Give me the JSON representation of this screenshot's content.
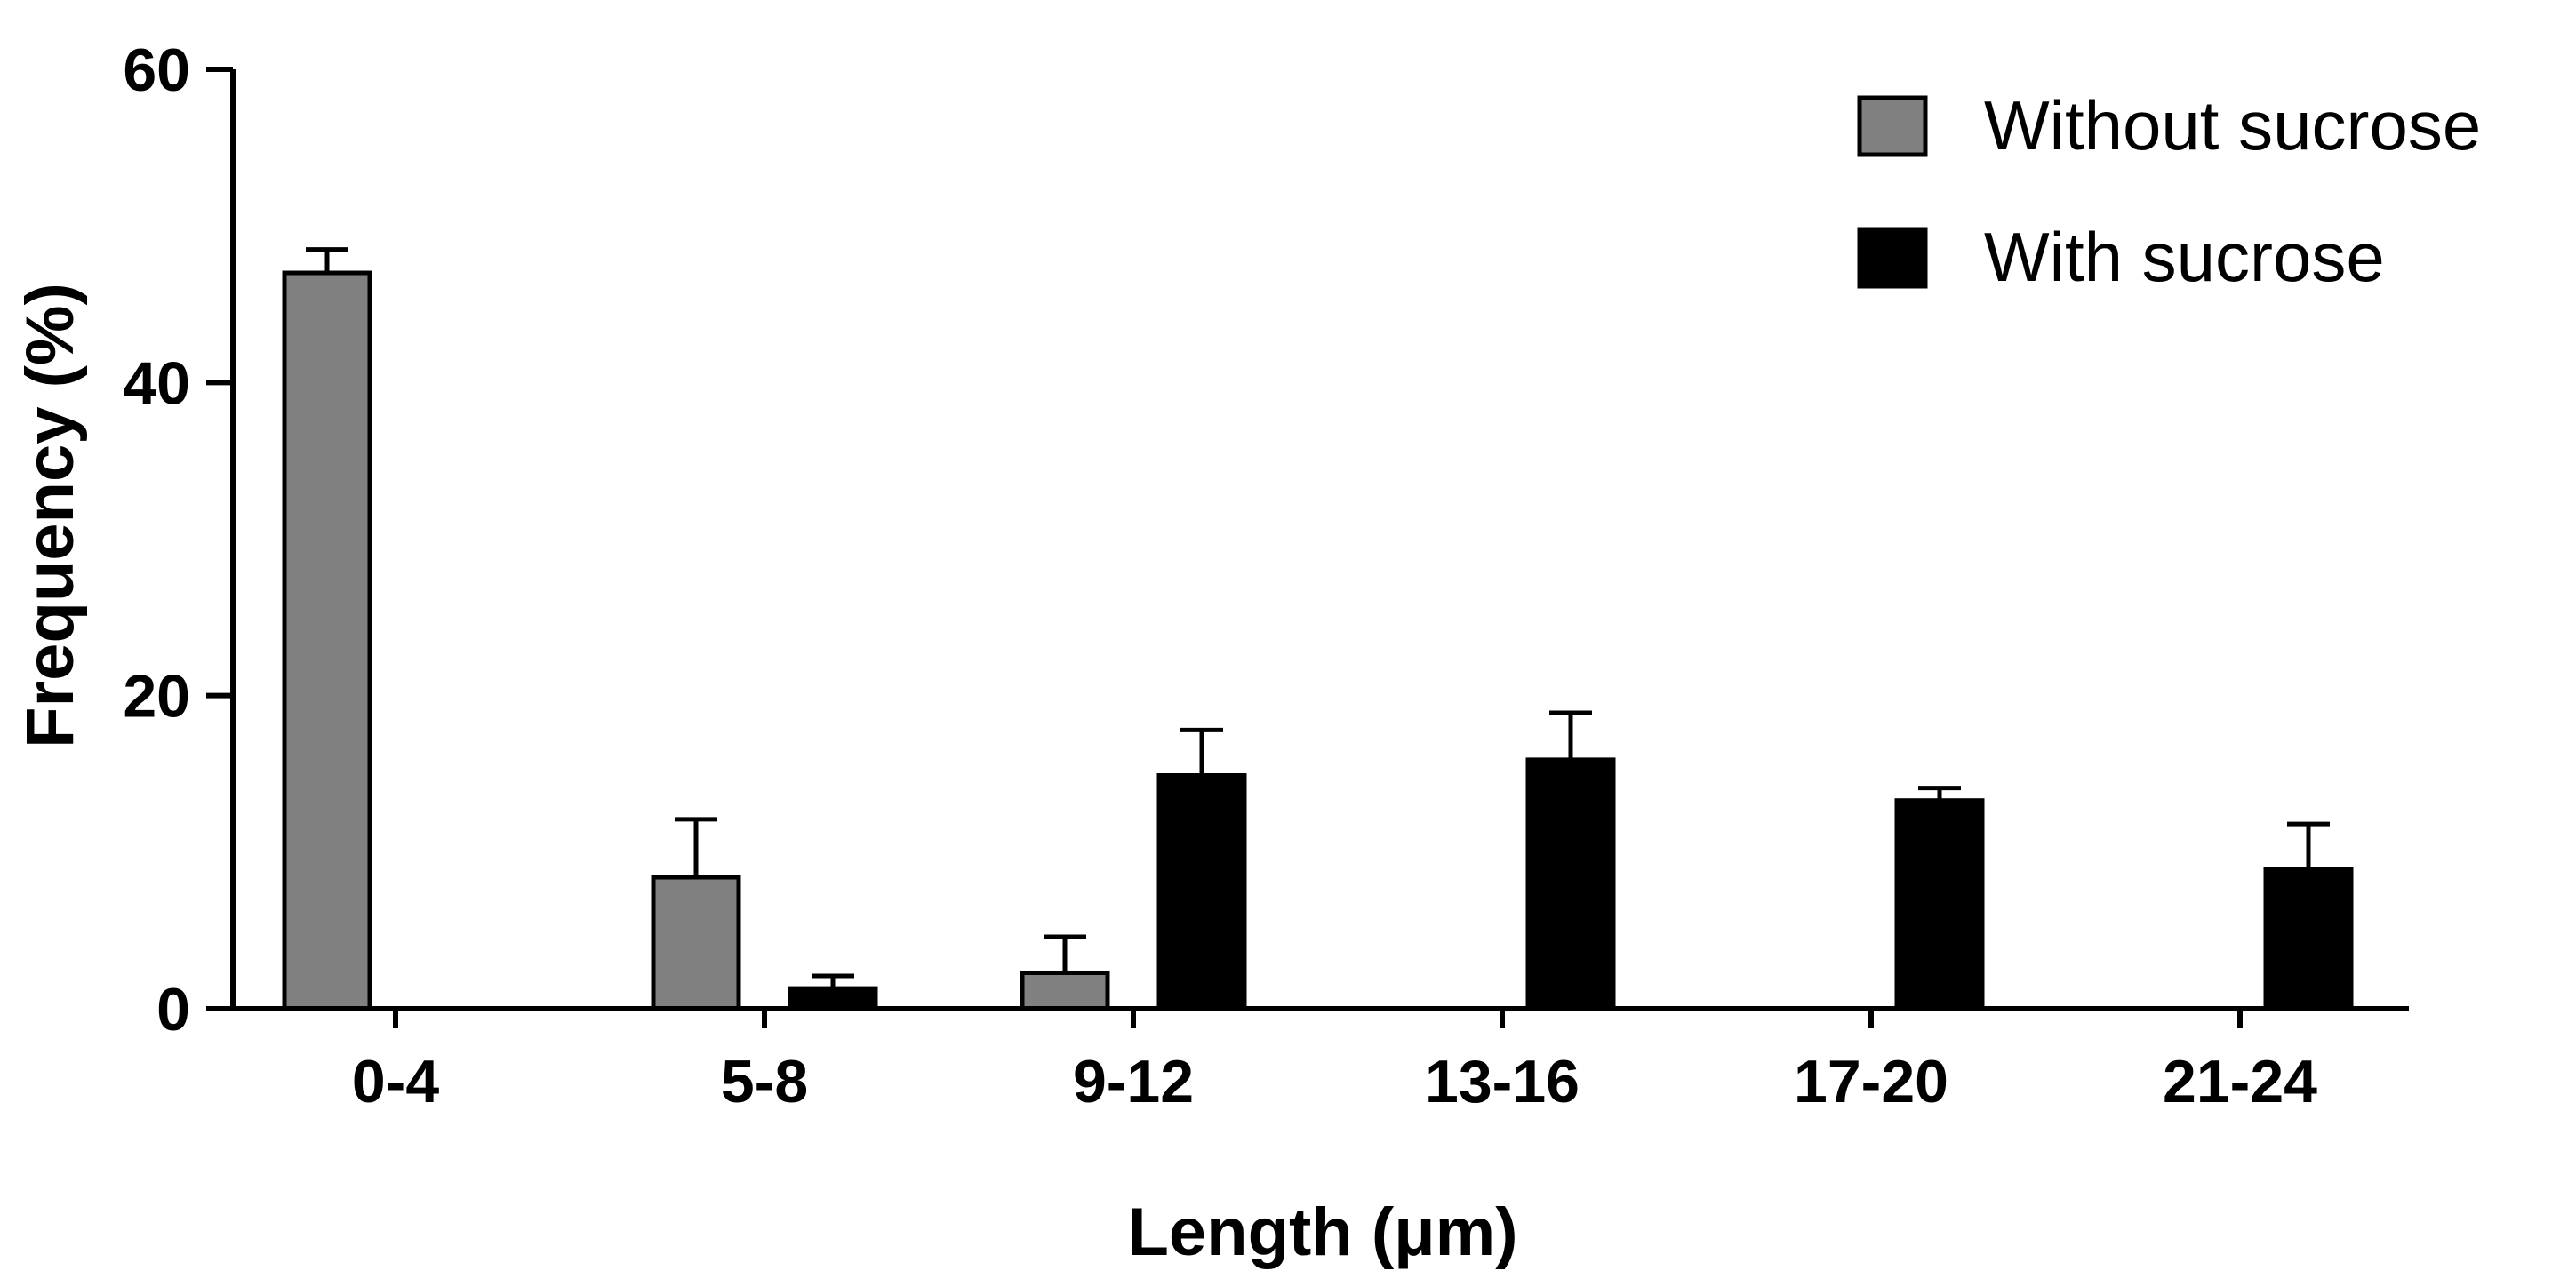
{
  "chart_data": {
    "type": "bar",
    "xlabel": "Length (μm)",
    "ylabel": "Frequency (%)",
    "ylim": [
      0,
      60
    ],
    "yticks": [
      0,
      20,
      40,
      60
    ],
    "categories": [
      "0-4",
      "5-8",
      "9-12",
      "13-16",
      "17-20",
      "21-24"
    ],
    "error_bars": "upper, one-sided",
    "legend_position": "top-right",
    "grid": false,
    "series": [
      {
        "name": "Without sucrose",
        "color": "#808080",
        "values": [
          47.0,
          8.4,
          2.3,
          0,
          0,
          0
        ],
        "errors": [
          1.5,
          3.7,
          2.3,
          0,
          0,
          0
        ]
      },
      {
        "name": "With sucrose",
        "color": "#000000",
        "values": [
          0,
          1.3,
          14.9,
          15.9,
          13.3,
          8.9
        ],
        "errors": [
          0,
          0.8,
          2.9,
          3.0,
          0.8,
          2.9
        ]
      }
    ]
  }
}
